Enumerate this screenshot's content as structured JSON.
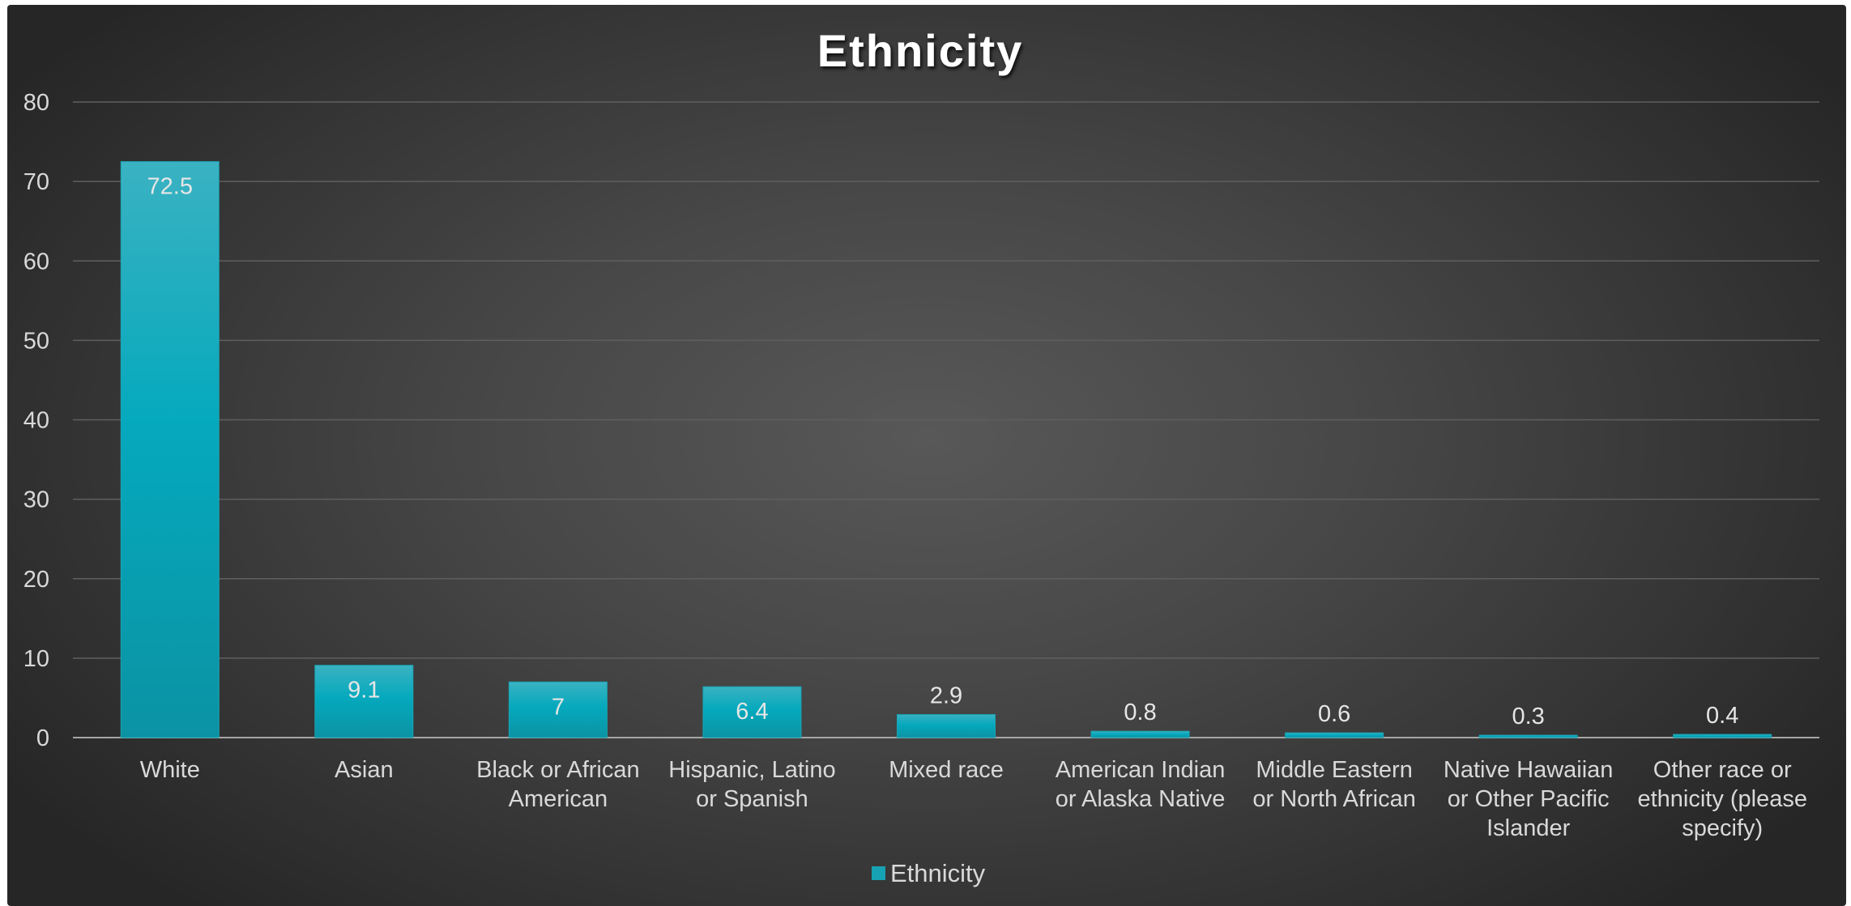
{
  "chart_data": {
    "type": "bar",
    "title": "Ethnicity",
    "categories": [
      [
        "White"
      ],
      [
        "Asian"
      ],
      [
        "Black or African",
        "American"
      ],
      [
        "Hispanic, Latino",
        "or Spanish"
      ],
      [
        "Mixed race"
      ],
      [
        "American Indian",
        "or Alaska Native"
      ],
      [
        "Middle Eastern",
        "or North African"
      ],
      [
        "Native Hawaiian",
        "or Other Pacific",
        "Islander"
      ],
      [
        "Other race or",
        "ethnicity (please",
        "specify)"
      ]
    ],
    "series": [
      {
        "name": "Ethnicity",
        "values": [
          72.5,
          9.1,
          7,
          6.4,
          2.9,
          0.8,
          0.6,
          0.3,
          0.4
        ],
        "data_labels": [
          "72.5",
          "9.1",
          "7",
          "6.4",
          "2.9",
          "0.8",
          "0.6",
          "0.3",
          "0.4"
        ]
      }
    ],
    "ylim": [
      0,
      80
    ],
    "yticks": [
      0,
      10,
      20,
      30,
      40,
      50,
      60,
      70,
      80
    ],
    "grid": true,
    "legend": "bottom",
    "colors": {
      "bar_top": "#3ab2c2",
      "bar_bottom": "#0b93a4",
      "grid": "#5f5f5f",
      "axis": "#a6a6a6",
      "legend_swatch": "#17a2b3"
    }
  }
}
